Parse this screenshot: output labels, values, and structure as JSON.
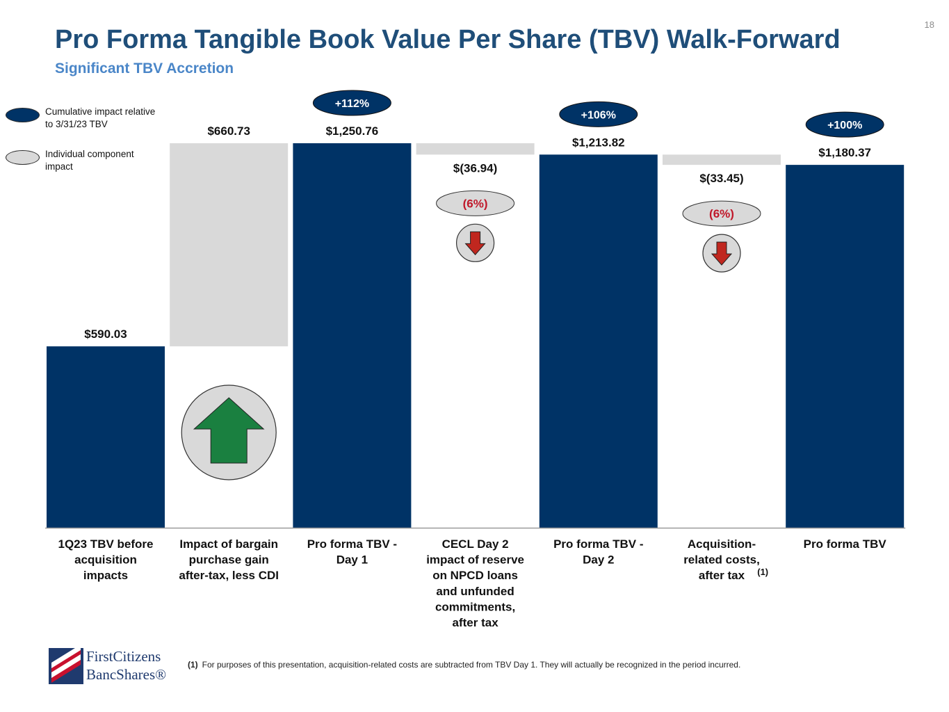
{
  "page": {
    "number": "18",
    "title": "Pro Forma Tangible Book Value Per Share (TBV) Walk-Forward",
    "subtitle": "Significant TBV Accretion"
  },
  "legend": [
    {
      "label": "Cumulative impact relative to 3/31/23 TBV",
      "color": "#003366"
    },
    {
      "label": "Individual component impact",
      "color": "#d9d9d9"
    }
  ],
  "colors": {
    "cumulative": "#003366",
    "component": "#d9d9d9",
    "title": "#1f4e79",
    "subtitle": "#4a86c8",
    "negative_pct": "#c0182a",
    "arrow_up": "#1a8040",
    "arrow_down": "#c0271f"
  },
  "chart_data": {
    "type": "bar",
    "subtype": "waterfall",
    "ylim": [
      0,
      1250.76
    ],
    "categories": [
      {
        "label": "1Q23 TBV before acquisition impacts",
        "lines": [
          "1Q23 TBV before",
          "acquisition",
          "impacts"
        ]
      },
      {
        "label": "Impact of bargain purchase gain after-tax, less CDI",
        "lines": [
          "Impact of bargain",
          "purchase gain",
          "after-tax, less CDI"
        ]
      },
      {
        "label": "Pro forma TBV - Day 1",
        "lines": [
          "Pro forma TBV -",
          "Day 1"
        ]
      },
      {
        "label": "CECL Day 2 impact of reserve on NPCD loans and unfunded commitments, after tax",
        "lines": [
          "CECL Day 2",
          "impact of reserve",
          "on NPCD loans",
          "and unfunded",
          "commitments,",
          "after tax"
        ]
      },
      {
        "label": "Pro forma TBV - Day 2",
        "lines": [
          "Pro forma TBV -",
          "Day 2"
        ]
      },
      {
        "label": "Acquisition-related costs, after tax (1)",
        "lines": [
          "Acquisition-",
          "related costs,",
          "after tax"
        ],
        "superscript": "(1)"
      },
      {
        "label": "Pro forma TBV",
        "lines": [
          "Pro forma TBV"
        ]
      }
    ],
    "bars": [
      {
        "kind": "total",
        "start": 0,
        "end": 590.03,
        "label": "$590.03"
      },
      {
        "kind": "increase",
        "start": 590.03,
        "end": 1250.76,
        "label": "$660.73",
        "arrow": "up"
      },
      {
        "kind": "total",
        "start": 0,
        "end": 1250.76,
        "label": "$1,250.76",
        "badge": "+112%"
      },
      {
        "kind": "decrease",
        "start": 1250.76,
        "end": 1213.82,
        "label": "$(36.94)",
        "pct": "(6%)",
        "arrow": "down"
      },
      {
        "kind": "total",
        "start": 0,
        "end": 1213.82,
        "label": "$1,213.82",
        "badge": "+106%"
      },
      {
        "kind": "decrease",
        "start": 1213.82,
        "end": 1180.37,
        "label": "$(33.45)",
        "pct": "(6%)",
        "arrow": "down"
      },
      {
        "kind": "total",
        "start": 0,
        "end": 1180.37,
        "label": "$1,180.37",
        "badge": "+100%"
      }
    ]
  },
  "footnote": {
    "marker": "(1)",
    "text": "For purposes of this presentation, acquisition-related costs are subtracted from TBV Day 1. They will actually be recognized in the period incurred."
  },
  "logo": {
    "line1": "FirstCitizens",
    "line2": "BancShares®"
  }
}
